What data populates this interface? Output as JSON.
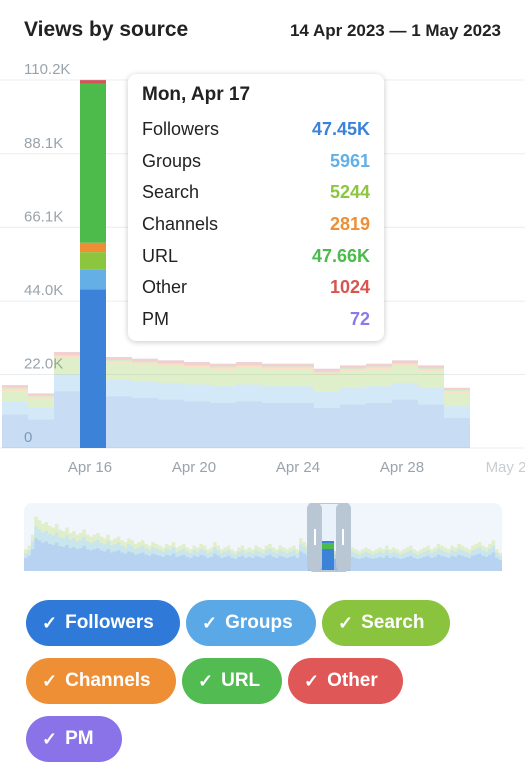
{
  "header": {
    "title": "Views by source",
    "date_range": "14 Apr 2023 — 1 May 2023"
  },
  "tooltip": {
    "date": "Mon, Apr 17",
    "rows": [
      {
        "name": "Followers",
        "value": "47.45K",
        "color": "#3b82d8"
      },
      {
        "name": "Groups",
        "value": "5961",
        "color": "#64b0e6"
      },
      {
        "name": "Search",
        "value": "5244",
        "color": "#8cc63f"
      },
      {
        "name": "Channels",
        "value": "2819",
        "color": "#ef8f35"
      },
      {
        "name": "URL",
        "value": "47.66K",
        "color": "#4cbb4c"
      },
      {
        "name": "Other",
        "value": "1024",
        "color": "#d9534f"
      },
      {
        "name": "PM",
        "value": "72",
        "color": "#8a7bea"
      }
    ]
  },
  "chips": [
    {
      "label": "Followers",
      "color": "#2f7ad9"
    },
    {
      "label": "Groups",
      "color": "#5aa9e6"
    },
    {
      "label": "Search",
      "color": "#8ac43f"
    },
    {
      "label": "Channels",
      "color": "#ef8f35"
    },
    {
      "label": "URL",
      "color": "#52bb52"
    },
    {
      "label": "Other",
      "color": "#e05757"
    },
    {
      "label": "PM",
      "color": "#8a73e8"
    }
  ],
  "chart_data": {
    "type": "area",
    "stacked": true,
    "ylim": [
      0,
      110200
    ],
    "y_ticks": [
      0,
      22000,
      44000,
      66100,
      88100,
      110200
    ],
    "y_tick_labels": [
      "0",
      "22.0K",
      "44.0K",
      "66.1K",
      "88.1K",
      "110.2K"
    ],
    "x_tick_labels": [
      "Apr 16",
      "Apr 20",
      "Apr 24",
      "Apr 28",
      "May 2"
    ],
    "x": [
      "Apr 14",
      "Apr 15",
      "Apr 16",
      "Apr 17",
      "Apr 18",
      "Apr 19",
      "Apr 20",
      "Apr 21",
      "Apr 22",
      "Apr 23",
      "Apr 24",
      "Apr 25",
      "Apr 26",
      "Apr 27",
      "Apr 28",
      "Apr 29",
      "Apr 30",
      "May 1"
    ],
    "highlight_index": 3,
    "series": [
      {
        "name": "Followers",
        "color": "#3b82d8",
        "values": [
          10000,
          8500,
          17000,
          47450,
          15500,
          15000,
          14500,
          14000,
          13500,
          14000,
          13500,
          13500,
          12000,
          13000,
          13500,
          14500,
          13000,
          9000
        ]
      },
      {
        "name": "Groups",
        "color": "#64b0e6",
        "values": [
          4000,
          3500,
          5000,
          5961,
          5000,
          5000,
          5000,
          5000,
          5000,
          5000,
          5000,
          5000,
          5000,
          5000,
          5000,
          5000,
          5000,
          3500
        ]
      },
      {
        "name": "Search",
        "color": "#8cc63f",
        "values": [
          3000,
          2800,
          5000,
          5244,
          5000,
          5000,
          5000,
          5000,
          5000,
          5000,
          5000,
          5000,
          5000,
          5000,
          5000,
          5000,
          5000,
          4000
        ]
      },
      {
        "name": "Channels",
        "color": "#ef8f35",
        "values": [
          800,
          600,
          600,
          2819,
          600,
          600,
          600,
          600,
          600,
          600,
          600,
          600,
          600,
          600,
          600,
          600,
          600,
          600
        ]
      },
      {
        "name": "URL",
        "color": "#4cbb4c",
        "values": [
          300,
          300,
          300,
          47660,
          300,
          300,
          300,
          300,
          300,
          300,
          300,
          300,
          300,
          300,
          300,
          300,
          300,
          300
        ]
      },
      {
        "name": "Other",
        "color": "#d9534f",
        "values": [
          700,
          600,
          800,
          1024,
          800,
          800,
          800,
          800,
          800,
          800,
          800,
          800,
          800,
          800,
          800,
          800,
          800,
          600
        ]
      },
      {
        "name": "PM",
        "color": "#8a7bea",
        "values": [
          50,
          50,
          60,
          72,
          60,
          60,
          60,
          60,
          60,
          60,
          60,
          60,
          60,
          60,
          60,
          60,
          60,
          50
        ]
      }
    ],
    "navigator_totals": [
      12000,
      14000,
      20000,
      30000,
      28000,
      26000,
      27000,
      25000,
      24000,
      26000,
      23000,
      22000,
      24000,
      21000,
      22000,
      20000,
      21000,
      23000,
      20000,
      19000,
      20000,
      21000,
      19000,
      18000,
      20000,
      17000,
      18000,
      19000,
      17000,
      16000,
      18000,
      17000,
      15000,
      16000,
      17000,
      15000,
      14000,
      16000,
      15000,
      14000,
      13000,
      15000,
      14000,
      16000,
      13000,
      14000,
      15000,
      13000,
      12000,
      14000,
      13000,
      15000,
      14000,
      12000,
      13000,
      16000,
      14000,
      12000,
      13000,
      14000,
      12000,
      11000,
      13000,
      14000,
      12000,
      13000,
      12000,
      14000,
      13000,
      12000,
      14000,
      15000,
      13000,
      12000,
      14000,
      13000,
      12000,
      13000,
      14000,
      12000,
      18000,
      16000,
      14000,
      15000,
      14000,
      13000,
      12000,
      14000,
      13000,
      12000,
      11000,
      12000,
      13000,
      12000,
      11000,
      13000,
      12000,
      11000,
      12000,
      13000,
      12000,
      11000,
      12000,
      13000,
      12000,
      14000,
      12000,
      13000,
      12000,
      11000,
      12000,
      13000,
      14000,
      12000,
      11000,
      12000,
      13000,
      14000,
      12000,
      13000,
      15000,
      14000,
      13000,
      12000,
      14000,
      13000,
      15000,
      14000,
      13000,
      12000,
      14000,
      15000,
      16000,
      14000,
      13000,
      15000,
      17000,
      12000,
      10000
    ],
    "navigator_window": {
      "start_index": 0,
      "end_index": 17
    },
    "legend_position": "bottom"
  }
}
